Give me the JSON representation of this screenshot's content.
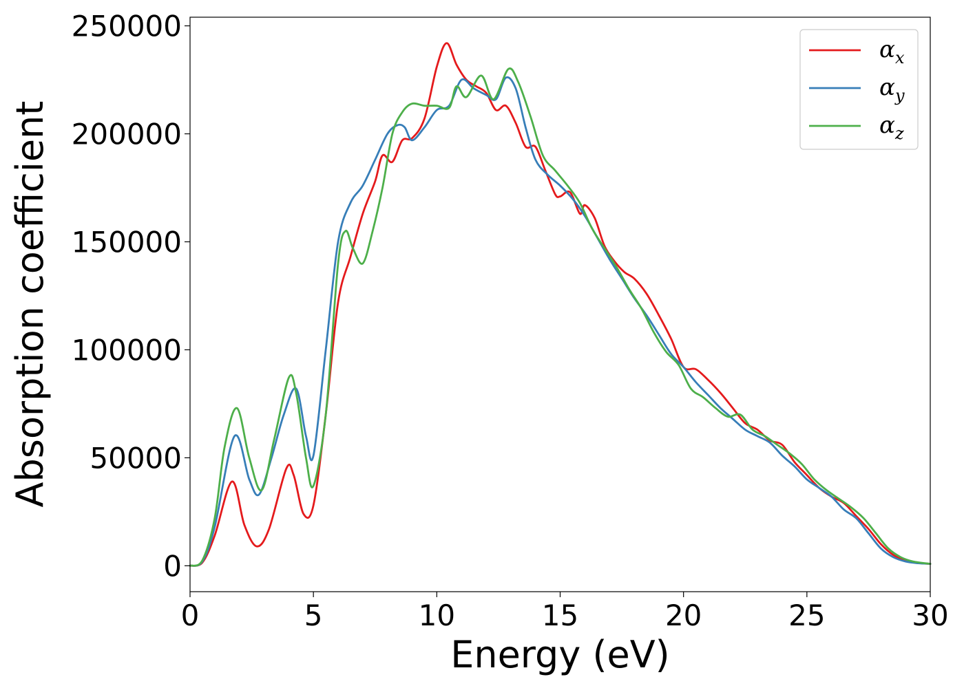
{
  "chart_data": {
    "type": "line",
    "xlabel": "Energy (eV)",
    "ylabel": "Absorption coefficient",
    "xlim": [
      0,
      30
    ],
    "ylim": [
      -12000,
      254000
    ],
    "xticks": [
      0,
      5,
      10,
      15,
      20,
      25,
      30
    ],
    "yticks": [
      0,
      50000,
      100000,
      150000,
      200000,
      250000
    ],
    "grid": false,
    "legend_position": "top-right",
    "series": [
      {
        "name": "α",
        "subscript": "x",
        "color": "#e41a1c",
        "x": [
          0,
          0.5,
          1.0,
          1.7,
          2.2,
          2.7,
          3.2,
          3.9,
          4.2,
          4.6,
          5.0,
          5.5,
          6.0,
          6.5,
          7.0,
          7.5,
          7.8,
          8.2,
          8.6,
          9.0,
          9.5,
          10.0,
          10.4,
          10.8,
          11.2,
          11.6,
          12.0,
          12.4,
          12.8,
          13.2,
          13.6,
          14.0,
          14.4,
          14.8,
          15.0,
          15.4,
          15.8,
          16.0,
          16.4,
          16.8,
          17.2,
          17.6,
          18.0,
          18.5,
          19.0,
          19.5,
          20.0,
          20.5,
          21.0,
          21.5,
          22.0,
          22.5,
          23.0,
          23.5,
          24.0,
          24.5,
          25.0,
          25.5,
          26.0,
          26.5,
          27.0,
          27.5,
          28.0,
          28.5,
          29.0,
          29.5,
          30.0
        ],
        "y": [
          0,
          1500,
          14000,
          39000,
          19000,
          9000,
          17000,
          45000,
          42000,
          24000,
          28000,
          70000,
          122000,
          143000,
          163000,
          178000,
          190000,
          187000,
          197000,
          198000,
          207000,
          231000,
          242000,
          232000,
          225000,
          222000,
          219000,
          211000,
          213000,
          205000,
          194000,
          194000,
          183000,
          172000,
          171000,
          173000,
          163000,
          167000,
          161000,
          148000,
          141000,
          136000,
          133000,
          126000,
          116000,
          105000,
          92000,
          91000,
          86000,
          80000,
          73000,
          66000,
          63000,
          58000,
          56000,
          48000,
          42000,
          36000,
          32000,
          29000,
          23000,
          17000,
          10000,
          5000,
          2500,
          1300,
          900
        ]
      },
      {
        "name": "α",
        "subscript": "y",
        "color": "#377eb8",
        "x": [
          0,
          0.5,
          1.0,
          1.8,
          2.4,
          2.8,
          3.3,
          3.8,
          4.3,
          4.7,
          5.0,
          5.5,
          6.0,
          6.5,
          7.0,
          7.5,
          8.0,
          8.4,
          8.7,
          9.0,
          9.5,
          10.0,
          10.5,
          11.0,
          11.5,
          12.0,
          12.4,
          12.8,
          13.2,
          13.6,
          14.0,
          14.5,
          15.0,
          15.5,
          16.0,
          16.5,
          17.0,
          17.5,
          18.0,
          18.5,
          19.0,
          19.5,
          20.0,
          20.5,
          21.0,
          21.5,
          22.0,
          22.5,
          23.0,
          23.5,
          24.0,
          24.5,
          25.0,
          25.5,
          26.0,
          26.5,
          27.0,
          27.5,
          28.0,
          28.5,
          29.0,
          29.5,
          30.0
        ],
        "y": [
          0,
          2000,
          18000,
          60000,
          40000,
          33000,
          50000,
          70000,
          82000,
          60000,
          51000,
          100000,
          150000,
          168000,
          176000,
          188000,
          200000,
          204000,
          203000,
          197000,
          203000,
          211000,
          213000,
          225000,
          221000,
          218000,
          216000,
          226000,
          221000,
          203000,
          188000,
          181000,
          176000,
          170000,
          162000,
          152000,
          142000,
          133000,
          124000,
          116000,
          107000,
          98000,
          92000,
          85000,
          79000,
          73000,
          68000,
          63000,
          60000,
          57000,
          51000,
          46000,
          40000,
          36000,
          32000,
          26000,
          22000,
          15000,
          8000,
          4000,
          2000,
          1200,
          900
        ]
      },
      {
        "name": "α",
        "subscript": "z",
        "color": "#4daf4a",
        "x": [
          0,
          0.5,
          1.0,
          1.4,
          1.9,
          2.4,
          2.9,
          3.4,
          4.0,
          4.3,
          4.7,
          5.0,
          5.5,
          6.0,
          6.3,
          6.6,
          7.0,
          7.4,
          7.8,
          8.2,
          8.6,
          9.0,
          9.5,
          10.0,
          10.5,
          10.8,
          11.2,
          11.8,
          12.3,
          12.9,
          13.3,
          13.8,
          14.3,
          14.8,
          15.3,
          15.8,
          16.3,
          16.8,
          17.3,
          17.8,
          18.3,
          18.8,
          19.3,
          19.8,
          20.3,
          20.8,
          21.3,
          21.8,
          22.3,
          22.8,
          23.3,
          23.8,
          24.3,
          24.8,
          25.3,
          25.8,
          26.3,
          26.8,
          27.3,
          27.8,
          28.3,
          28.8,
          29.3,
          30.0
        ],
        "y": [
          0,
          2500,
          22000,
          55000,
          73000,
          50000,
          35000,
          58000,
          87000,
          80000,
          50000,
          37000,
          70000,
          140000,
          155000,
          147000,
          140000,
          155000,
          175000,
          200000,
          210000,
          214000,
          213000,
          213000,
          212000,
          222000,
          217000,
          227000,
          216000,
          230000,
          224000,
          208000,
          190000,
          183000,
          176000,
          168000,
          156000,
          147000,
          138000,
          128000,
          119000,
          108000,
          99000,
          93000,
          82000,
          78000,
          73000,
          69000,
          70000,
          63000,
          60000,
          56000,
          52000,
          47000,
          40000,
          35000,
          31000,
          27000,
          22000,
          15000,
          8000,
          4000,
          2000,
          900
        ]
      }
    ]
  }
}
